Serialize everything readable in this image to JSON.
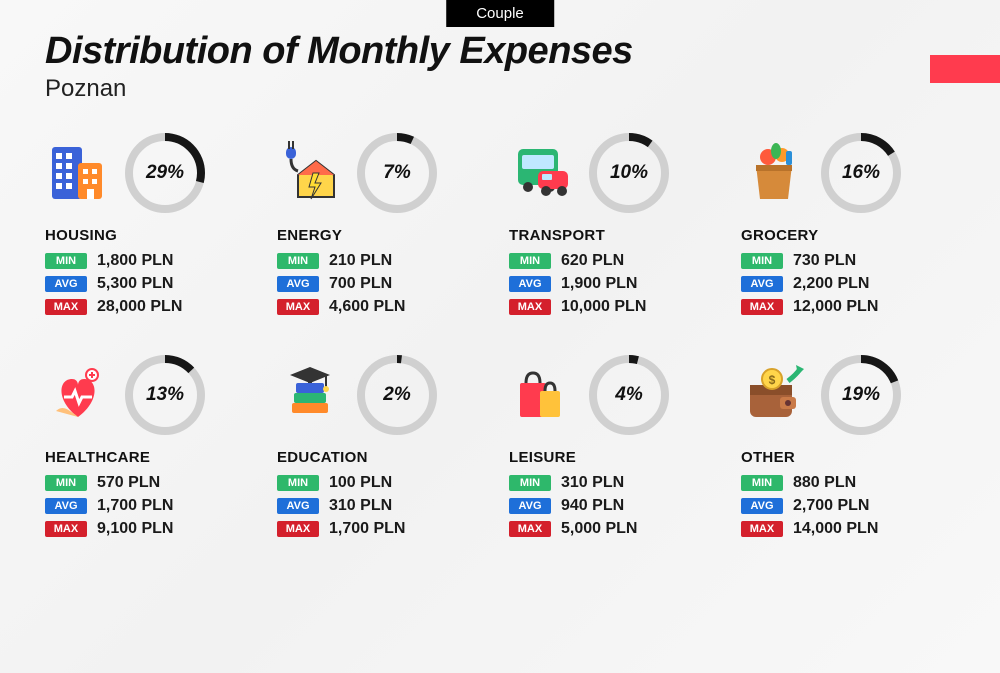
{
  "tag": "Couple",
  "title": "Distribution of Monthly Expenses",
  "city": "Poznan",
  "accent_color": "#ff3b4e",
  "donut": {
    "size": 80,
    "stroke_width": 8,
    "track_color": "#d0d0d0",
    "fill_color": "#161616"
  },
  "labels": {
    "min": "MIN",
    "avg": "AVG",
    "max": "MAX"
  },
  "badge_colors": {
    "min": "#2eb86b",
    "avg": "#1e6fd9",
    "max": "#d4202c"
  },
  "currency": "PLN",
  "categories": [
    {
      "key": "housing",
      "name": "HOUSING",
      "pct": 29,
      "min": "1,800 PLN",
      "avg": "5,300 PLN",
      "max": "28,000 PLN",
      "icon": "building-icon"
    },
    {
      "key": "energy",
      "name": "ENERGY",
      "pct": 7,
      "min": "210 PLN",
      "avg": "700 PLN",
      "max": "4,600 PLN",
      "icon": "plug-house-icon"
    },
    {
      "key": "transport",
      "name": "TRANSPORT",
      "pct": 10,
      "min": "620 PLN",
      "avg": "1,900 PLN",
      "max": "10,000 PLN",
      "icon": "bus-car-icon"
    },
    {
      "key": "grocery",
      "name": "GROCERY",
      "pct": 16,
      "min": "730 PLN",
      "avg": "2,200 PLN",
      "max": "12,000 PLN",
      "icon": "grocery-bag-icon"
    },
    {
      "key": "healthcare",
      "name": "HEALTHCARE",
      "pct": 13,
      "min": "570 PLN",
      "avg": "1,700 PLN",
      "max": "9,100 PLN",
      "icon": "heart-medical-icon"
    },
    {
      "key": "education",
      "name": "EDUCATION",
      "pct": 2,
      "min": "100 PLN",
      "avg": "310 PLN",
      "max": "1,700 PLN",
      "icon": "graduation-books-icon"
    },
    {
      "key": "leisure",
      "name": "LEISURE",
      "pct": 4,
      "min": "310 PLN",
      "avg": "940 PLN",
      "max": "5,000 PLN",
      "icon": "shopping-bags-icon"
    },
    {
      "key": "other",
      "name": "OTHER",
      "pct": 19,
      "min": "880 PLN",
      "avg": "2,700 PLN",
      "max": "14,000 PLN",
      "icon": "wallet-arrow-icon"
    }
  ]
}
